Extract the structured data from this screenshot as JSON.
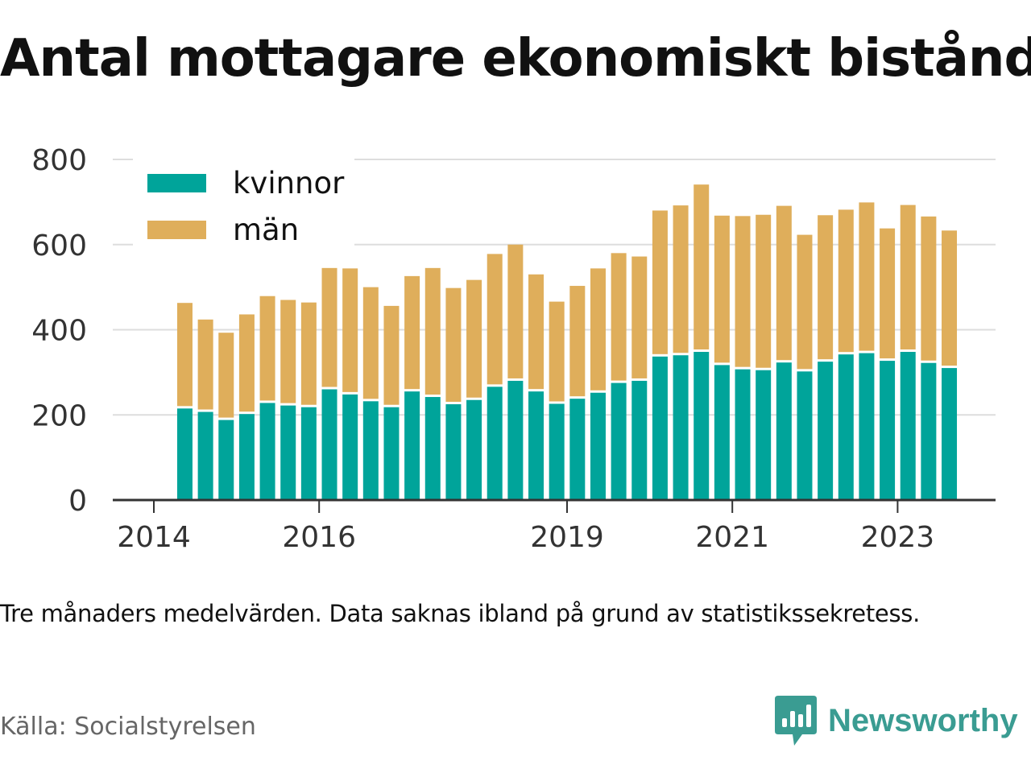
{
  "title": "Antal mottagare ekonomiskt bistånd",
  "note": "Tre månaders medelvärden. Data saknas ibland på grund av statistikssekretess.",
  "source": "Källa: Socialstyrelsen",
  "brand": {
    "name": "Newsworthy",
    "icon": "newsworthy-logo-icon",
    "color": "#3a9c92"
  },
  "colors": {
    "kvinnor": "#00a49a",
    "man": "#dfae5b",
    "grid": "#dddddd",
    "axis": "#333333"
  },
  "chart_data": {
    "type": "bar",
    "stacked": true,
    "x_tick_labels": [
      "2014",
      "2016",
      "2019",
      "2021",
      "2023"
    ],
    "x_tick_years": [
      2014,
      2016,
      2019,
      2021,
      2023
    ],
    "ylim": [
      0,
      800
    ],
    "y_ticks": [
      0,
      200,
      400,
      600,
      800
    ],
    "y_tick_labels": [
      "0",
      "200",
      "400",
      "600",
      "800"
    ],
    "grid": true,
    "legend_position": "top-left",
    "x_dates": [
      2014.375,
      2014.625,
      2014.875,
      2015.125,
      2015.375,
      2015.625,
      2015.875,
      2016.125,
      2016.375,
      2016.625,
      2016.875,
      2017.125,
      2017.375,
      2017.625,
      2017.875,
      2018.125,
      2018.375,
      2018.625,
      2018.875,
      2019.125,
      2019.375,
      2019.625,
      2019.875,
      2020.125,
      2020.375,
      2020.625,
      2020.875,
      2021.125,
      2021.375,
      2021.625,
      2021.875,
      2022.125,
      2022.375,
      2022.625,
      2022.875,
      2023.125,
      2023.375,
      2023.625
    ],
    "series": [
      {
        "name": "kvinnor",
        "values": [
          215,
          207,
          188,
          202,
          228,
          222,
          218,
          260,
          248,
          232,
          218,
          255,
          242,
          225,
          235,
          266,
          280,
          255,
          226,
          238,
          252,
          275,
          280,
          337,
          340,
          348,
          317,
          307,
          305,
          323,
          302,
          325,
          342,
          345,
          327,
          348,
          322,
          310
        ]
      },
      {
        "name": "män",
        "values": [
          248,
          217,
          205,
          234,
          251,
          248,
          246,
          285,
          296,
          268,
          238,
          271,
          303,
          273,
          282,
          312,
          320,
          275,
          240,
          265,
          292,
          305,
          292,
          343,
          352,
          393,
          351,
          360,
          365,
          368,
          321,
          344,
          340,
          354,
          311,
          345,
          344,
          323
        ]
      }
    ]
  }
}
